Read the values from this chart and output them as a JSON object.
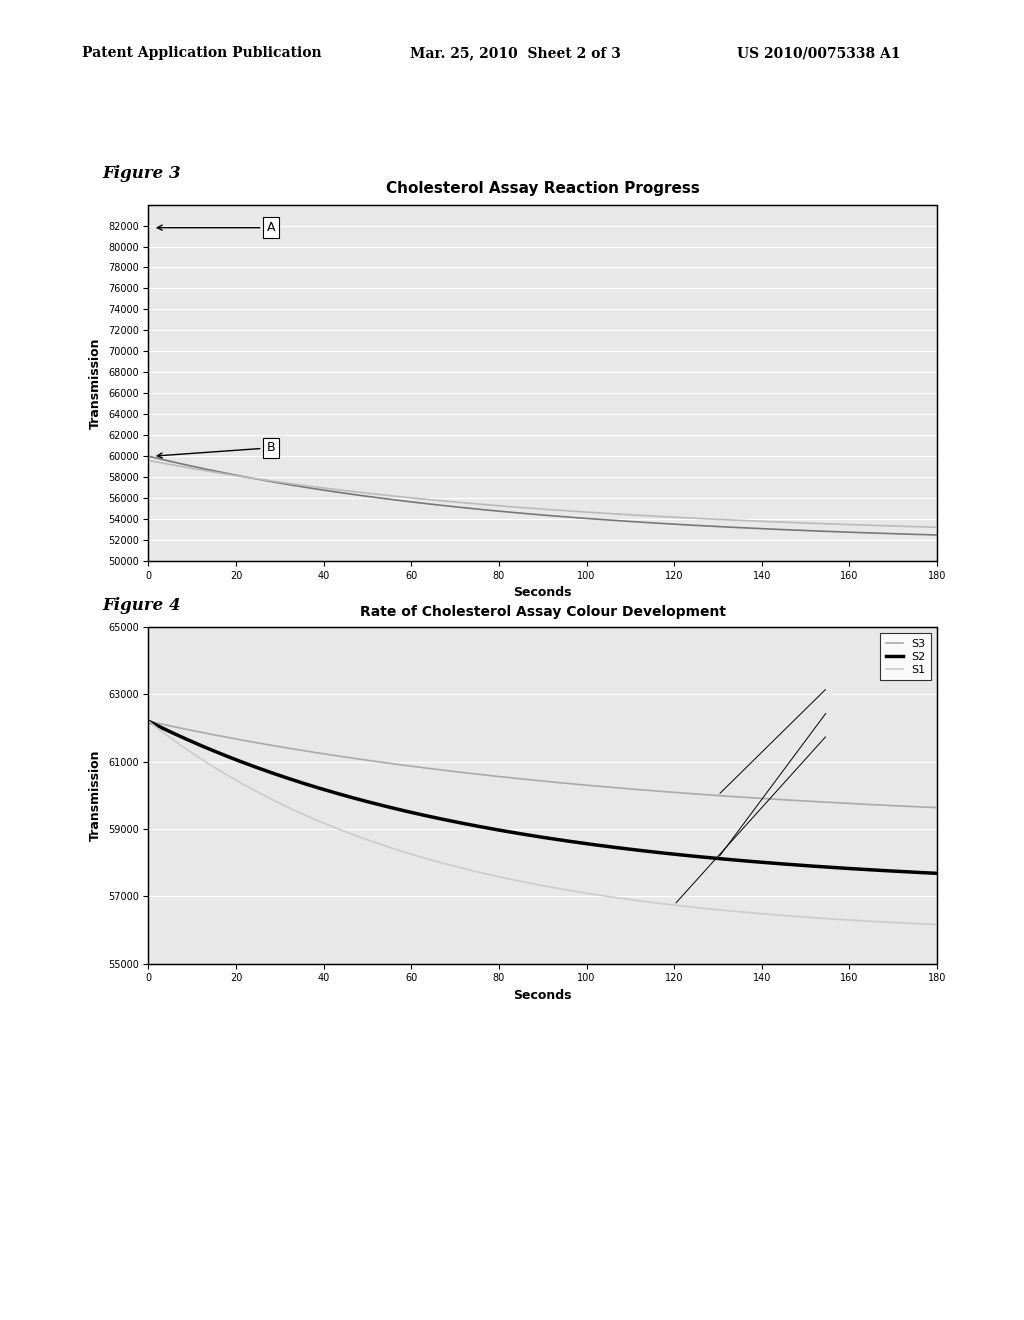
{
  "header_left": "Patent Application Publication",
  "header_center": "Mar. 25, 2010  Sheet 2 of 3",
  "header_right": "US 2010/0075338 A1",
  "fig3_label": "Figure 3",
  "fig4_label": "Figure 4",
  "fig3_title": "Cholesterol Assay Reaction Progress",
  "fig3_xlabel": "Seconds",
  "fig3_ylabel": "Transmission",
  "fig3_xlim": [
    0,
    180
  ],
  "fig3_ylim": [
    50000,
    84000
  ],
  "fig3_yticks": [
    50000,
    52000,
    54000,
    56000,
    58000,
    60000,
    62000,
    64000,
    66000,
    68000,
    70000,
    72000,
    74000,
    76000,
    78000,
    80000,
    82000
  ],
  "fig3_xticks": [
    0,
    20,
    40,
    60,
    80,
    100,
    120,
    140,
    160,
    180
  ],
  "fig4_title": "Rate of Cholesterol Assay Colour Development",
  "fig4_xlabel": "Seconds",
  "fig4_ylabel": "Transmission",
  "fig4_xlim": [
    0,
    180
  ],
  "fig4_ylim": [
    55000,
    65000
  ],
  "fig4_yticks": [
    55000,
    57000,
    59000,
    61000,
    63000,
    65000
  ],
  "fig4_xticks": [
    0,
    20,
    40,
    60,
    80,
    100,
    120,
    140,
    160,
    180
  ],
  "fig4_legend": [
    "S3",
    "S2",
    "S1"
  ],
  "fig4_colors": [
    "#aaaaaa",
    "#000000",
    "#cccccc"
  ],
  "fig4_linewidths": [
    1.2,
    2.5,
    1.2
  ],
  "background_color": "#ffffff",
  "page_bg": "#ffffff"
}
